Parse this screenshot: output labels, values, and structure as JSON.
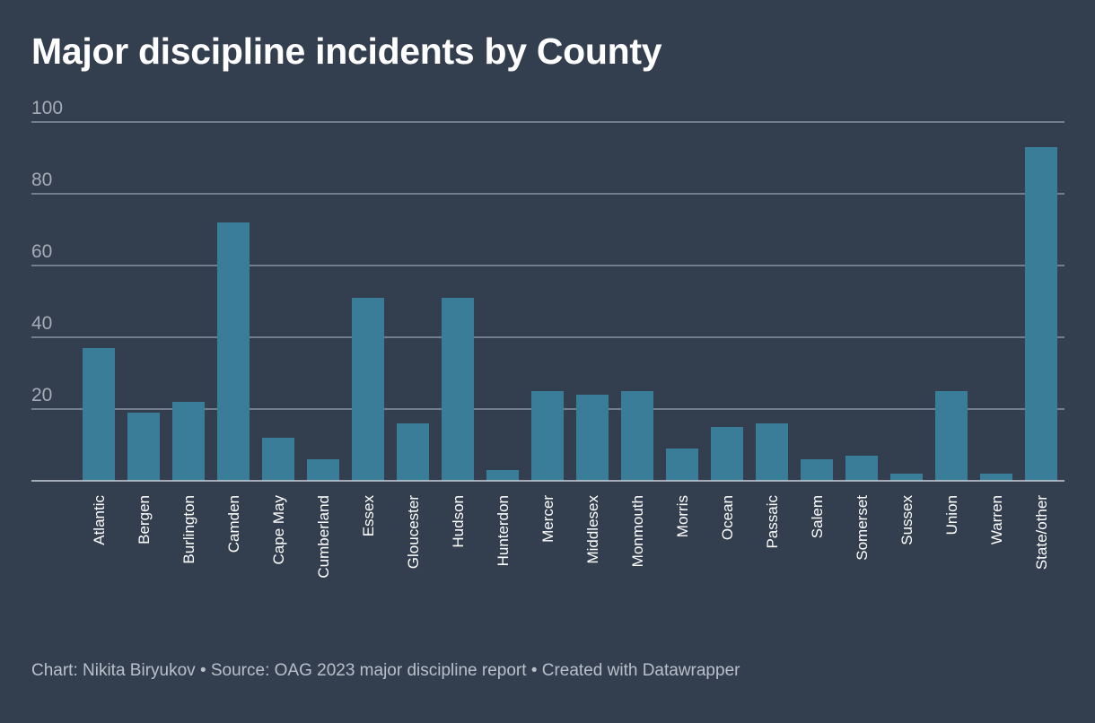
{
  "title": "Major discipline incidents by County",
  "footer": "Chart: Nikita Biryukov • Source: OAG 2023 major discipline report • Created with Datawrapper",
  "colors": {
    "background": "#333e4f",
    "bar": "#3a7d98",
    "grid": "#8a929d",
    "tick_text": "#a4acb6",
    "label_text": "#ffffff"
  },
  "chart_data": {
    "type": "bar",
    "title": "Major discipline incidents by County",
    "xlabel": "",
    "ylabel": "",
    "ylim": [
      0,
      100
    ],
    "yticks": [
      20,
      40,
      60,
      80,
      100
    ],
    "grid": true,
    "categories": [
      "Atlantic",
      "Bergen",
      "Burlington",
      "Camden",
      "Cape May",
      "Cumberland",
      "Essex",
      "Gloucester",
      "Hudson",
      "Hunterdon",
      "Mercer",
      "Middlesex",
      "Monmouth",
      "Morris",
      "Ocean",
      "Passaic",
      "Salem",
      "Somerset",
      "Sussex",
      "Union",
      "Warren",
      "State/other"
    ],
    "values": [
      37,
      19,
      22,
      72,
      12,
      6,
      51,
      16,
      51,
      3,
      25,
      24,
      25,
      9,
      15,
      16,
      6,
      7,
      2,
      25,
      2,
      93
    ]
  }
}
